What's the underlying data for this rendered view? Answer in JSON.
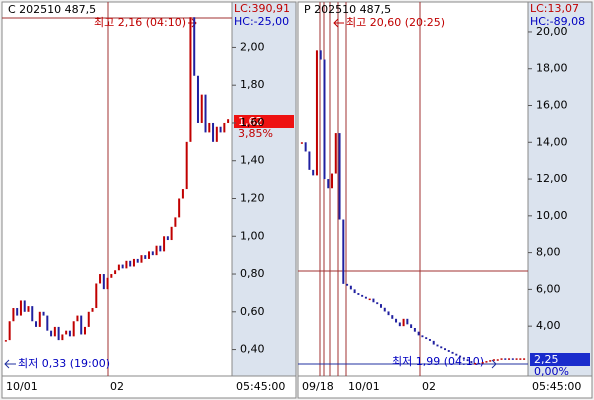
{
  "chart_data": [
    {
      "type": "candlestick",
      "label": "C 202510 487,5",
      "lc": "LC:390,91",
      "hc": "HC:-25,00",
      "high_note": "최고 2,16 (04:10)",
      "low_note": "최저 0,33 (19:00)",
      "last_price": "1,62",
      "change": "3,85%",
      "x_labels": [
        "10/01",
        "02"
      ],
      "time": "05:45:00",
      "up_color": "#c00000",
      "down_color": "#2020a0",
      "values": [
        0.45,
        0.55,
        0.62,
        0.58,
        0.66,
        0.6,
        0.63,
        0.55,
        0.52,
        0.6,
        0.58,
        0.5,
        0.47,
        0.52,
        0.45,
        0.48,
        0.5,
        0.47,
        0.55,
        0.58,
        0.48,
        0.52,
        0.6,
        0.62,
        0.75,
        0.8,
        0.72,
        0.78,
        0.8,
        0.82,
        0.85,
        0.83,
        0.87,
        0.84,
        0.88,
        0.86,
        0.9,
        0.88,
        0.92,
        0.9,
        0.95,
        0.92,
        1.0,
        0.98,
        1.05,
        1.1,
        1.2,
        1.25,
        1.5,
        2.16,
        1.85,
        1.6,
        1.75,
        1.55,
        1.6,
        1.5,
        1.58,
        1.55,
        1.6,
        1.62
      ],
      "ylim": [
        0.26,
        2.23
      ],
      "yticks": [
        {
          "value": 0.4,
          "label": "0,40"
        },
        {
          "value": 0.6,
          "label": "0,60"
        },
        {
          "value": 0.8,
          "label": "0,80"
        },
        {
          "value": 1.0,
          "label": "1,00"
        },
        {
          "value": 1.2,
          "label": "1,20"
        },
        {
          "value": 1.4,
          "label": "1,40"
        },
        {
          "value": 1.6,
          "label": "1,60"
        },
        {
          "value": 1.8,
          "label": "1,80"
        },
        {
          "value": 2.0,
          "label": "2,00"
        }
      ]
    },
    {
      "type": "candlestick",
      "label": "P 202510 487,5",
      "lc": "LC:13,07",
      "hc": "HC:-89,08",
      "high_note": "최고 20,60 (20:25)",
      "low_note": "최저 1,99 (04:10)",
      "last_price": "2,25",
      "change": "0,00%",
      "x_labels": [
        "09/18",
        "10/01",
        "02"
      ],
      "time": "05:45:00",
      "up_color": "#c00000",
      "down_color": "#2020a0",
      "values": [
        14.0,
        13.5,
        12.5,
        12.2,
        19.0,
        18.5,
        12.0,
        11.5,
        12.3,
        14.5,
        9.8,
        6.3,
        6.2,
        6.0,
        5.8,
        5.7,
        5.6,
        5.5,
        5.5,
        5.3,
        5.2,
        5.0,
        4.8,
        4.6,
        4.4,
        4.2,
        4.0,
        4.4,
        4.1,
        3.9,
        3.7,
        3.5,
        3.4,
        3.3,
        3.2,
        3.0,
        2.9,
        2.8,
        2.7,
        2.6,
        2.5,
        2.4,
        2.3,
        2.2,
        2.1,
        2.0,
        2.0,
        1.99,
        2.05,
        2.1,
        2.15,
        2.2,
        2.2,
        2.25,
        2.2,
        2.25,
        2.2,
        2.25,
        2.25,
        2.25
      ],
      "ylim": [
        1.29,
        21.52
      ],
      "yticks": [
        {
          "value": 4,
          "label": "4,00"
        },
        {
          "value": 6,
          "label": "6,00"
        },
        {
          "value": 8,
          "label": "8,00"
        },
        {
          "value": 10,
          "label": "10,00"
        },
        {
          "value": 12,
          "label": "12,00"
        },
        {
          "value": 14,
          "label": "14,00"
        },
        {
          "value": 16,
          "label": "16,00"
        },
        {
          "value": 18,
          "label": "18,00"
        },
        {
          "value": 20,
          "label": "20,00"
        }
      ]
    }
  ]
}
